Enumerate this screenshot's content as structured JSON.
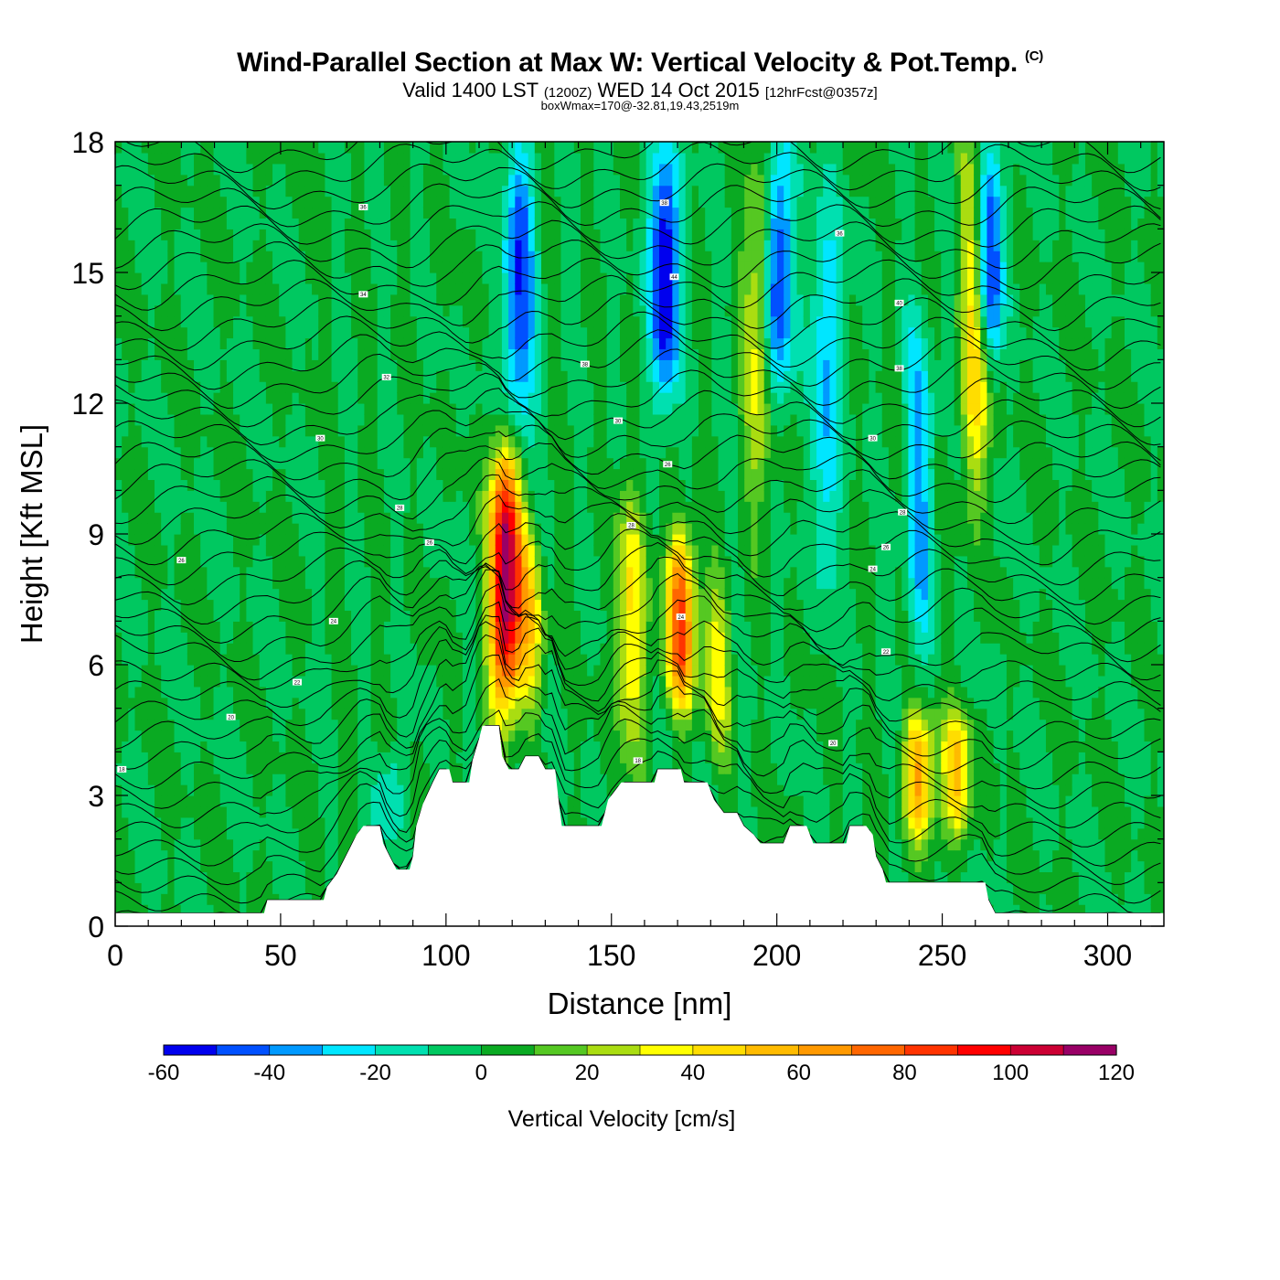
{
  "title": {
    "main": "Wind-Parallel Section at Max W: Vertical Velocity & Pot.Temp.",
    "copyright": "(C)",
    "valid_prefix": "Valid 1400 LST",
    "valid_utc": "(1200Z)",
    "valid_date": "WED 14 Oct 2015",
    "forecast": "[12hrFcst@0357z]",
    "box_info": "boxWmax=170@-32.81,19.43,2519m"
  },
  "chart_data": {
    "type": "heatmap",
    "xlabel": "Distance [nm]",
    "ylabel": "Height [Kft MSL]",
    "xlim": [
      0,
      317
    ],
    "ylim": [
      0,
      18
    ],
    "xticks": [
      0,
      50,
      100,
      150,
      200,
      250,
      300
    ],
    "yticks": [
      0,
      3,
      6,
      9,
      12,
      15,
      18
    ],
    "colorbar": {
      "label": "Vertical Velocity [cm/s]",
      "levels": [
        -60,
        -50,
        -40,
        -30,
        -20,
        -10,
        0,
        10,
        20,
        30,
        40,
        50,
        60,
        70,
        80,
        90,
        100,
        110,
        120
      ],
      "tick_labels": [
        "-60",
        "-40",
        "-20",
        "0",
        "20",
        "40",
        "60",
        "80",
        "100",
        "120"
      ],
      "colors": [
        "#0000ee",
        "#0050ff",
        "#0099ff",
        "#00e6ff",
        "#00e0b0",
        "#00c860",
        "#0aaa22",
        "#55c822",
        "#aadd11",
        "#ffff00",
        "#ffdd00",
        "#ffbb00",
        "#ff9900",
        "#ff6600",
        "#ff3300",
        "#ff0000",
        "#cc0033",
        "#990066"
      ]
    },
    "w_features": [
      {
        "x": 118,
        "z_bottom": 5,
        "z_top": 11,
        "w_max": 120
      },
      {
        "x": 171,
        "z_bottom": 5,
        "z_top": 9,
        "w_max": 80
      },
      {
        "x": 243,
        "z_bottom": 2,
        "z_top": 5,
        "w_max": 60
      },
      {
        "x": 254,
        "z_bottom": 2,
        "z_top": 5,
        "w_max": 50
      },
      {
        "x": 125,
        "z_bottom": 5,
        "z_top": 9,
        "w_max": 40
      },
      {
        "x": 156,
        "z_bottom": 4,
        "z_top": 10,
        "w_max": 40
      },
      {
        "x": 182,
        "z_bottom": 4,
        "z_top": 8,
        "w_max": 30
      },
      {
        "x": 195,
        "z_bottom": 10,
        "z_top": 18,
        "w_max": 40
      },
      {
        "x": 260,
        "z_bottom": 10,
        "z_top": 18,
        "w_max": 50
      },
      {
        "x": 166,
        "z_bottom": 12,
        "z_top": 18,
        "w_max": -60
      },
      {
        "x": 200,
        "z_bottom": 12,
        "z_top": 18,
        "w_max": -60
      },
      {
        "x": 264,
        "z_bottom": 13,
        "z_top": 18,
        "w_max": -60
      },
      {
        "x": 122,
        "z_bottom": 11,
        "z_top": 18,
        "w_max": -50
      },
      {
        "x": 83,
        "z_bottom": 2,
        "z_top": 4,
        "w_max": -20
      },
      {
        "x": 215,
        "z_bottom": 8,
        "z_top": 17,
        "w_max": -30
      },
      {
        "x": 243,
        "z_bottom": 6,
        "z_top": 14,
        "w_max": -30
      }
    ],
    "terrain": [
      [
        0,
        0.3
      ],
      [
        45,
        0.3
      ],
      [
        46,
        0.6
      ],
      [
        63,
        0.6
      ],
      [
        64,
        0.9
      ],
      [
        67,
        1.2
      ],
      [
        69,
        1.5
      ],
      [
        71,
        1.8
      ],
      [
        73,
        2.1
      ],
      [
        75,
        2.3
      ],
      [
        80,
        2.3
      ],
      [
        81,
        1.9
      ],
      [
        83,
        1.6
      ],
      [
        85,
        1.3
      ],
      [
        89,
        1.3
      ],
      [
        90,
        1.6
      ],
      [
        91,
        2.3
      ],
      [
        93,
        2.8
      ],
      [
        96,
        3.3
      ],
      [
        98,
        3.6
      ],
      [
        101,
        3.6
      ],
      [
        102,
        3.3
      ],
      [
        107,
        3.3
      ],
      [
        108,
        3.8
      ],
      [
        110,
        4.3
      ],
      [
        111,
        4.6
      ],
      [
        116,
        4.6
      ],
      [
        117,
        3.9
      ],
      [
        119,
        3.6
      ],
      [
        122,
        3.6
      ],
      [
        124,
        3.9
      ],
      [
        128,
        3.9
      ],
      [
        130,
        3.6
      ],
      [
        133,
        3.6
      ],
      [
        134,
        2.9
      ],
      [
        135,
        2.3
      ],
      [
        147,
        2.3
      ],
      [
        148,
        2.6
      ],
      [
        149,
        2.9
      ],
      [
        151,
        3.1
      ],
      [
        153,
        3.3
      ],
      [
        163,
        3.3
      ],
      [
        164,
        3.6
      ],
      [
        171,
        3.6
      ],
      [
        172,
        3.3
      ],
      [
        179,
        3.3
      ],
      [
        181,
        2.9
      ],
      [
        184,
        2.6
      ],
      [
        188,
        2.6
      ],
      [
        190,
        2.3
      ],
      [
        193,
        2.1
      ],
      [
        195,
        1.9
      ],
      [
        202,
        1.9
      ],
      [
        204,
        2.3
      ],
      [
        209,
        2.3
      ],
      [
        211,
        1.9
      ],
      [
        221,
        1.9
      ],
      [
        222,
        2.3
      ],
      [
        227,
        2.3
      ],
      [
        229,
        2.1
      ],
      [
        230,
        1.6
      ],
      [
        232,
        1.3
      ],
      [
        233,
        1.0
      ],
      [
        263,
        1.0
      ],
      [
        264,
        0.6
      ],
      [
        266,
        0.3
      ],
      [
        317,
        0.3
      ]
    ],
    "theta_labels": [
      {
        "x": 75,
        "z": 16.5,
        "text": "36"
      },
      {
        "x": 75,
        "z": 14.5,
        "text": "34"
      },
      {
        "x": 82,
        "z": 12.6,
        "text": "32"
      },
      {
        "x": 62,
        "z": 11.2,
        "text": "30"
      },
      {
        "x": 86,
        "z": 9.6,
        "text": "28"
      },
      {
        "x": 20,
        "z": 8.4,
        "text": "26"
      },
      {
        "x": 66,
        "z": 7.0,
        "text": "24"
      },
      {
        "x": 55,
        "z": 5.6,
        "text": "22"
      },
      {
        "x": 35,
        "z": 4.8,
        "text": "20"
      },
      {
        "x": 2,
        "z": 3.6,
        "text": "18"
      },
      {
        "x": 95,
        "z": 8.8,
        "text": "26"
      },
      {
        "x": 142,
        "z": 12.9,
        "text": "38"
      },
      {
        "x": 152,
        "z": 11.6,
        "text": "30"
      },
      {
        "x": 156,
        "z": 9.2,
        "text": "28"
      },
      {
        "x": 167,
        "z": 10.6,
        "text": "26"
      },
      {
        "x": 171,
        "z": 7.1,
        "text": "24"
      },
      {
        "x": 158,
        "z": 3.8,
        "text": "18"
      },
      {
        "x": 166,
        "z": 16.6,
        "text": "38"
      },
      {
        "x": 169,
        "z": 14.9,
        "text": "44"
      },
      {
        "x": 219,
        "z": 15.9,
        "text": "36"
      },
      {
        "x": 237,
        "z": 14.3,
        "text": "40"
      },
      {
        "x": 237,
        "z": 12.8,
        "text": "38"
      },
      {
        "x": 229,
        "z": 11.2,
        "text": "30"
      },
      {
        "x": 238,
        "z": 9.5,
        "text": "28"
      },
      {
        "x": 233,
        "z": 8.7,
        "text": "26"
      },
      {
        "x": 229,
        "z": 8.2,
        "text": "24"
      },
      {
        "x": 233,
        "z": 6.3,
        "text": "22"
      },
      {
        "x": 217,
        "z": 4.2,
        "text": "20"
      }
    ]
  }
}
